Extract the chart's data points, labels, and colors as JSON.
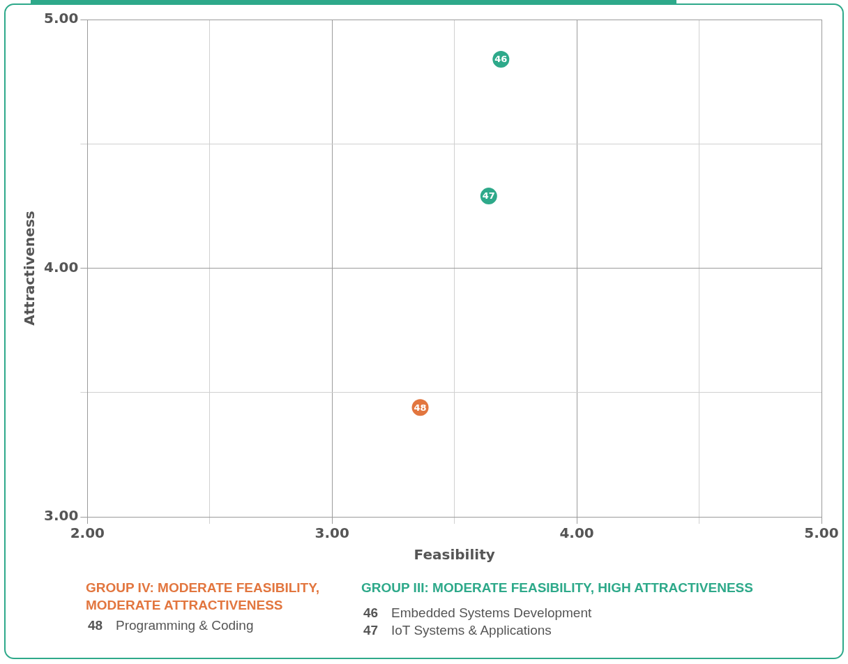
{
  "chart_data": {
    "type": "scatter",
    "xlabel": "Feasibility",
    "ylabel": "Attractiveness",
    "xlim": [
      2,
      5
    ],
    "xticks": [
      {
        "value": 2,
        "label": "2.00"
      },
      {
        "value": 2.5,
        "label": null
      },
      {
        "value": 3,
        "label": "3.00"
      },
      {
        "value": 3.5,
        "label": null
      },
      {
        "value": 4,
        "label": "4.00"
      },
      {
        "value": 4.5,
        "label": null
      },
      {
        "value": 5,
        "label": "5.00"
      }
    ],
    "ylim": [
      3,
      5
    ],
    "yticks": [
      {
        "value": 3,
        "label": "3.00"
      },
      {
        "value": 3.5,
        "label": null
      },
      {
        "value": 4,
        "label": "4.00"
      },
      {
        "value": 4.5,
        "label": null
      },
      {
        "value": 5,
        "label": "5.00"
      }
    ],
    "grid": true,
    "legend": "bottom",
    "marker": "circle",
    "series": [
      {
        "name": "GROUP IV: MODERATE FEASIBILITY, MODERATE ATTRACTIVENESS",
        "color": "#e2763f",
        "x": [
          3.36
        ],
        "values": [
          3.44
        ]
      },
      {
        "name": "GROUP III: MODERATE FEASIBILITY, HIGH ATTRACTIVENESS",
        "color": "#2ea98a",
        "x": [
          3.69,
          3.64
        ],
        "values": [
          4.84,
          4.29
        ]
      }
    ],
    "annotations": [
      {
        "text": "48",
        "x": 3.36,
        "y": 3.44
      },
      {
        "text": "46",
        "x": 3.69,
        "y": 4.84
      },
      {
        "text": "47",
        "x": 3.64,
        "y": 4.29
      },
      "Programming & Coding",
      "Embedded Systems Development",
      "IoT Systems & Applications"
    ]
  }
}
